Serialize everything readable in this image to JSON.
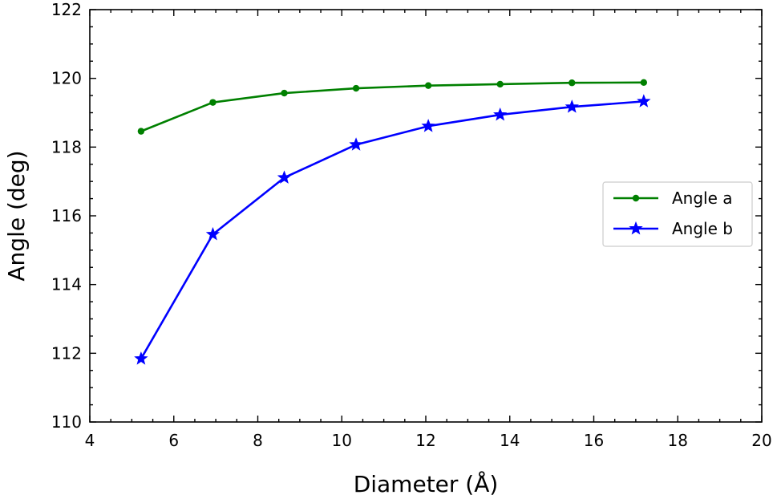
{
  "chart_data": {
    "type": "line",
    "xlabel": "Diameter (Å)",
    "ylabel": "Angle (deg)",
    "xlim": [
      4,
      20
    ],
    "ylim": [
      110,
      122
    ],
    "xticks": [
      4,
      6,
      8,
      10,
      12,
      14,
      16,
      18,
      20
    ],
    "yticks": [
      110,
      112,
      114,
      116,
      118,
      120,
      122
    ],
    "x_minor_step": 0.5,
    "y_minor_step": 0.5,
    "tick_direction": "in",
    "grid": false,
    "legend_position": "center-right",
    "x": [
      5.22,
      6.93,
      8.63,
      10.34,
      12.06,
      13.77,
      15.48,
      17.19
    ],
    "series": [
      {
        "name": "Angle a",
        "color": "#008000",
        "marker": "circle",
        "values": [
          118.46,
          119.3,
          119.57,
          119.71,
          119.79,
          119.83,
          119.87,
          119.88
        ]
      },
      {
        "name": "Angle b",
        "color": "#0000ff",
        "marker": "star",
        "values": [
          111.84,
          115.46,
          117.11,
          118.07,
          118.61,
          118.94,
          119.17,
          119.33
        ]
      }
    ]
  }
}
